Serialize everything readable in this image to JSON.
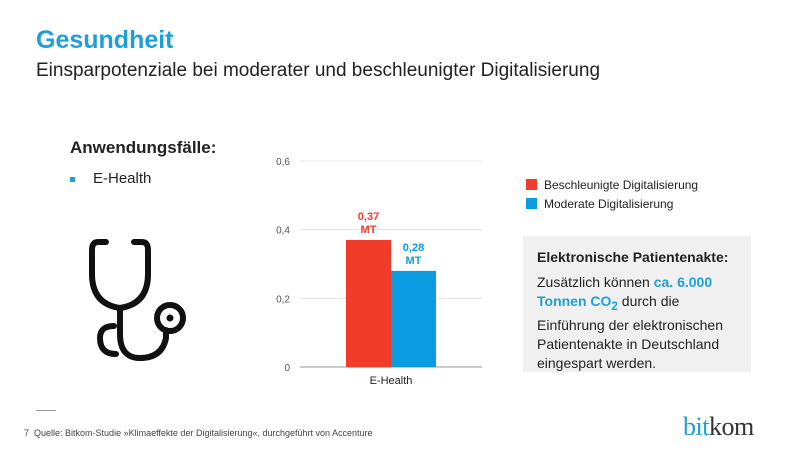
{
  "header": {
    "title": "Gesundheit",
    "subtitle": "Einsparpotenziale bei moderater und beschleunigter Digitalisierung"
  },
  "use_cases": {
    "heading": "Anwendungsfälle:",
    "items": [
      "E-Health"
    ],
    "icon": "stethoscope-icon"
  },
  "chart_data": {
    "type": "bar",
    "categories": [
      "E-Health"
    ],
    "series": [
      {
        "name": "Beschleunigte Digitalisierung",
        "values": [
          0.37
        ],
        "label": "0,37",
        "unit": "MT",
        "color": "#f03c28"
      },
      {
        "name": "Moderate Digitalisierung",
        "values": [
          0.28
        ],
        "label": "0,28",
        "unit": "MT",
        "color": "#0a9be0"
      }
    ],
    "ylim": [
      0,
      0.6
    ],
    "yticks": [
      {
        "v": 0,
        "label": "0"
      },
      {
        "v": 0.2,
        "label": "0,2"
      },
      {
        "v": 0.4,
        "label": "0,4"
      },
      {
        "v": 0.6,
        "label": "0,6"
      }
    ],
    "grid": true,
    "legend": "right"
  },
  "info_box": {
    "heading": "Elektronische Patientenakte:",
    "text_pre": "Zusätzlich können ",
    "highlight": "ca. 6.000 Tonnen CO",
    "highlight_sub": "2",
    "text_post": " durch die Einführung der elektronischen Patientenakte in Deutschland eingespart werden."
  },
  "footer": {
    "page": "7",
    "source": "Quelle: Bitkom-Studie »Klimaeffekte der Digitalisierung«, durchgeführt von Accenture"
  },
  "logo": {
    "part1": "bit",
    "part2": "kom"
  }
}
